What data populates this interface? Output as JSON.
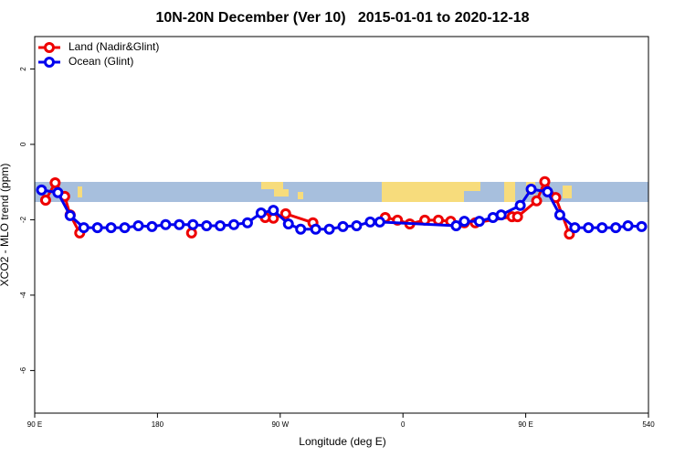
{
  "chart_data": {
    "type": "line",
    "title": "10N-20N December (Ver 10)   2015-01-01 to 2020-12-18",
    "xlabel": "Longitude (deg E)",
    "ylabel": "XCO2 - MLO trend (ppm)",
    "xlim": [
      90,
      540
    ],
    "ylim": [
      -7.13,
      2.86
    ],
    "xticks": [
      {
        "value": 90,
        "label": "90 E"
      },
      180,
      {
        "value": 270,
        "label": "90 W"
      },
      {
        "value": 360,
        "label": "0"
      },
      {
        "value": 450,
        "label": "90 E"
      },
      540
    ],
    "yticks": [
      2,
      0,
      -2,
      -4,
      -6
    ],
    "legend": "top-left",
    "series": [
      {
        "name": "Land (Nadir&Glint)",
        "color": "#ee0000",
        "x": [
          98,
          105,
          112,
          116,
          123,
          null,
          205,
          null,
          259,
          265,
          274,
          294,
          null,
          347,
          356,
          365,
          376,
          386,
          395,
          405,
          413,
          440,
          444,
          458,
          464,
          472,
          482
        ],
        "values": [
          -1.48,
          -1.02,
          -1.38,
          -1.87,
          -2.35,
          null,
          -2.35,
          null,
          -1.94,
          -1.96,
          -1.84,
          -2.08,
          null,
          -1.94,
          -2.01,
          -2.11,
          -2.01,
          -2.01,
          -2.04,
          -2.08,
          -2.08,
          -1.92,
          -1.92,
          -1.5,
          -0.99,
          -1.41,
          -2.38
        ]
      },
      {
        "name": "Ocean (Glint)",
        "color": "#0000ee",
        "x": [
          95,
          107,
          116,
          126,
          136,
          146,
          156,
          166,
          176,
          186,
          196,
          206,
          216,
          226,
          236,
          246,
          256,
          265,
          276,
          285,
          296,
          306,
          316,
          326,
          336,
          343,
          399,
          405,
          416,
          426,
          432,
          446,
          454,
          466,
          475,
          486,
          496,
          506,
          516,
          525,
          535
        ],
        "values": [
          -1.21,
          -1.28,
          -1.89,
          -2.21,
          -2.21,
          -2.21,
          -2.21,
          -2.16,
          -2.18,
          -2.13,
          -2.13,
          -2.13,
          -2.16,
          -2.16,
          -2.13,
          -2.08,
          -1.82,
          -1.75,
          -2.11,
          -2.25,
          -2.25,
          -2.25,
          -2.18,
          -2.16,
          -2.06,
          -2.06,
          -2.16,
          -2.04,
          -2.04,
          -1.94,
          -1.87,
          -1.62,
          -1.19,
          -1.26,
          -1.87,
          -2.21,
          -2.21,
          -2.21,
          -2.21,
          -2.16,
          -2.18
        ]
      }
    ]
  }
}
